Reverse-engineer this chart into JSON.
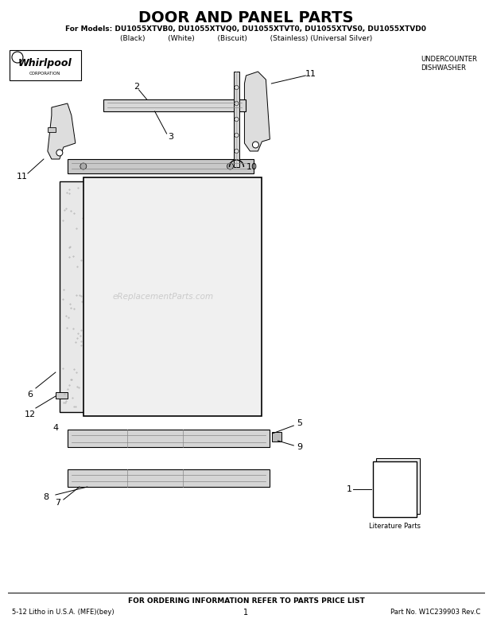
{
  "title": "DOOR AND PANEL PARTS",
  "subtitle_line1": "For Models: DU1055XTVB0, DU1055XTVQ0, DU1055XTVT0, DU1055XTVS0, DU1055XTVD0",
  "subtitle_line2": "(Black)          (White)          (Biscuit)          (Stainless) (Universal Silver)",
  "whirlpool_text": "Whirlpool",
  "undercounter_text": "UNDERCOUNTER\nDISHWASHER",
  "watermark": "eReplacementParts.com",
  "footer_left": "5-12 Litho in U.S.A. (MFE)(bey)",
  "footer_center": "1",
  "footer_right": "Part No. W1C239903 Rev.C",
  "footer_order": "FOR ORDERING INFORMATION REFER TO PARTS PRICE LIST",
  "bg_color": "#ffffff",
  "line_color": "#000000",
  "part_color": "#555555",
  "label_color": "#000000"
}
